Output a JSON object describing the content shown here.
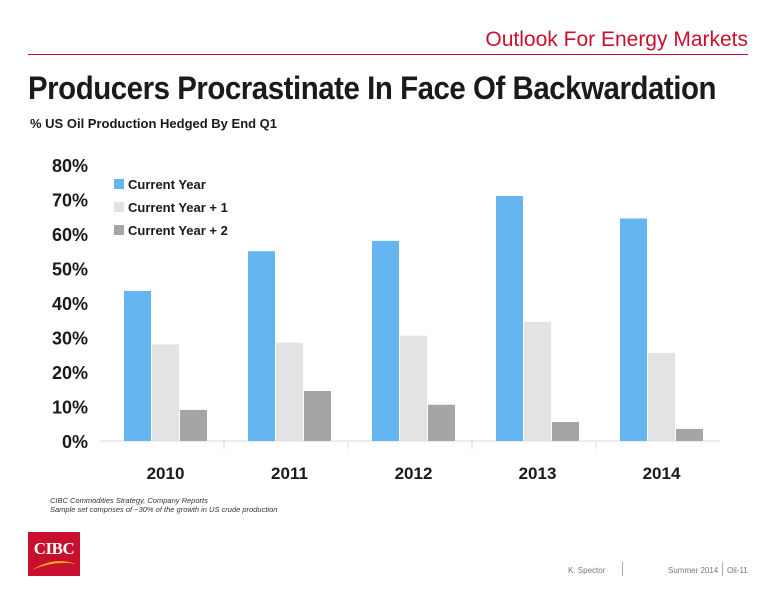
{
  "header": {
    "section_title": "Outlook For Energy Markets"
  },
  "title": "Producers Procrastinate In Face Of Backwardation",
  "subtitle": "% US Oil Production Hedged By End Q1",
  "chart_data": {
    "type": "bar",
    "categories": [
      "2010",
      "2011",
      "2012",
      "2013",
      "2014"
    ],
    "series": [
      {
        "name": "Current Year",
        "values": [
          43.5,
          55,
          58,
          71,
          64.5
        ],
        "color": "#64b5f0"
      },
      {
        "name": "Current Year + 1",
        "values": [
          28,
          28.5,
          30.5,
          34.5,
          25.5
        ],
        "color": "#e3e3e3"
      },
      {
        "name": "Current Year + 2",
        "values": [
          9,
          14.5,
          10.5,
          5.5,
          3.5
        ],
        "color": "#a5a5a5"
      }
    ],
    "yticks": [
      "0%",
      "10%",
      "20%",
      "30%",
      "40%",
      "50%",
      "60%",
      "70%",
      "80%"
    ],
    "ylim": [
      0,
      80
    ],
    "legend_position": "top-left",
    "grid": false
  },
  "source": {
    "line1": "CIBC Commodities Strategy, Company Reports",
    "line2": "Sample set comprises of ~30% of the growth in US crude production"
  },
  "logo": {
    "text": "CIBC"
  },
  "footer": {
    "author": "K. Spector",
    "date": "Summer 2014",
    "page": "Oil-11"
  },
  "colors": {
    "accent": "#c8102e"
  }
}
